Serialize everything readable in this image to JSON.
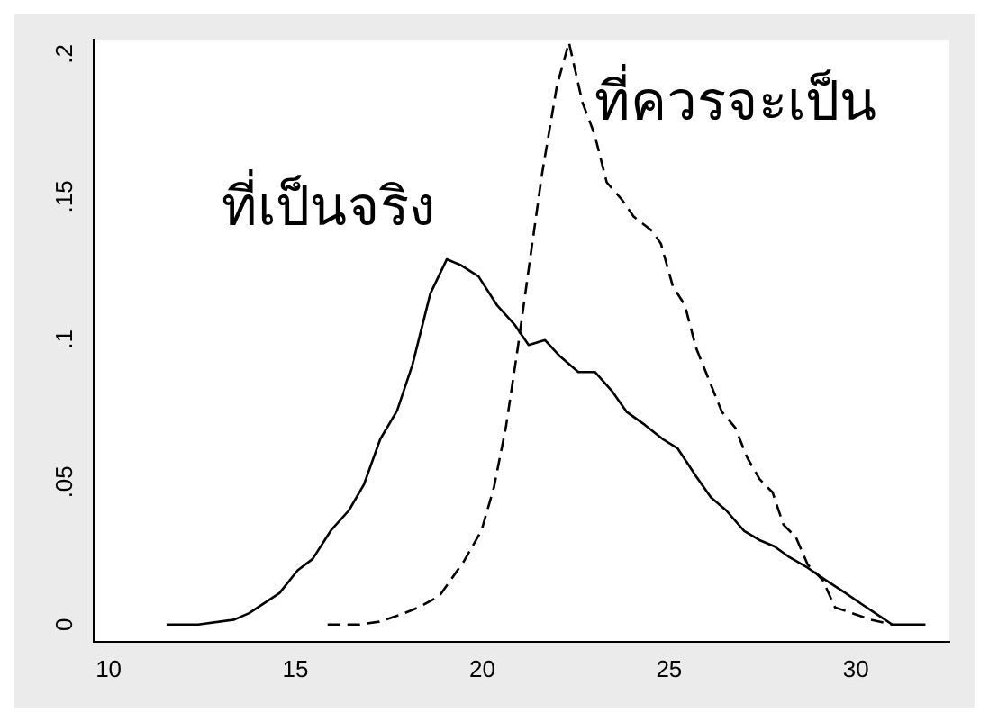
{
  "chart_data": {
    "type": "line",
    "xlim": [
      9.6,
      32.5
    ],
    "ylim": [
      -0.006,
      0.205
    ],
    "xticks": [
      10,
      15,
      20,
      25,
      30
    ],
    "yticks": [
      0,
      {
        "value": 0.05,
        "label": ".05"
      },
      {
        "value": 0.1,
        "label": ".1"
      },
      {
        "value": 0.15,
        "label": ".15"
      },
      {
        "value": 0.2,
        "label": ".2"
      }
    ],
    "grid": false,
    "legend": false,
    "marker": "none",
    "series": [
      {
        "name": "ที่เป็นจริง",
        "color": "#000000",
        "line_style": "solid",
        "x": [
          11.55,
          12.4,
          13.36,
          13.76,
          14.57,
          15.06,
          15.46,
          15.95,
          16.43,
          16.83,
          17.27,
          17.72,
          18.13,
          18.61,
          19.05,
          19.42,
          19.9,
          20.39,
          20.87,
          21.24,
          21.68,
          22.08,
          22.57,
          23.02,
          23.46,
          23.86,
          24.35,
          24.83,
          25.23,
          25.72,
          26.12,
          26.53,
          27.01,
          27.42,
          27.82,
          28.22,
          28.71,
          29.19,
          29.68,
          30.16,
          30.65,
          30.97,
          31.86
        ],
        "values": [
          0,
          0,
          0.0017,
          0.004,
          0.011,
          0.019,
          0.023,
          0.033,
          0.04,
          0.049,
          0.065,
          0.075,
          0.091,
          0.116,
          0.128,
          0.126,
          0.122,
          0.112,
          0.105,
          0.098,
          0.0997,
          0.094,
          0.0885,
          0.0885,
          0.082,
          0.0746,
          0.07,
          0.065,
          0.0617,
          0.052,
          0.0446,
          0.04,
          0.0328,
          0.0296,
          0.0274,
          0.0236,
          0.0199,
          0.0156,
          0.0114,
          0.0071,
          0.0028,
          0,
          0
        ]
      },
      {
        "name": "ที่ควรจะเป็น",
        "color": "#000000",
        "line_style": "dashed",
        "x": [
          15.86,
          16.72,
          17.24,
          17.8,
          18.29,
          18.85,
          19.5,
          19.98,
          20.31,
          20.63,
          20.95,
          21.31,
          21.6,
          22.0,
          22.32,
          22.68,
          23.0,
          23.33,
          23.73,
          24.05,
          24.54,
          24.78,
          25.1,
          25.42,
          25.72,
          26.12,
          26.41,
          26.77,
          27.09,
          27.42,
          27.77,
          28.06,
          28.39,
          28.71,
          29.11,
          29.44,
          29.92,
          30.4,
          30.97
        ],
        "values": [
          0,
          0,
          0.001,
          0.0034,
          0.006,
          0.01,
          0.022,
          0.033,
          0.048,
          0.069,
          0.097,
          0.131,
          0.158,
          0.189,
          0.204,
          0.183,
          0.172,
          0.155,
          0.149,
          0.143,
          0.138,
          0.1335,
          0.1185,
          0.112,
          0.097,
          0.084,
          0.0746,
          0.069,
          0.0585,
          0.051,
          0.0463,
          0.035,
          0.0307,
          0.021,
          0.0156,
          0.006,
          0.0039,
          0.0017,
          0
        ]
      }
    ]
  }
}
